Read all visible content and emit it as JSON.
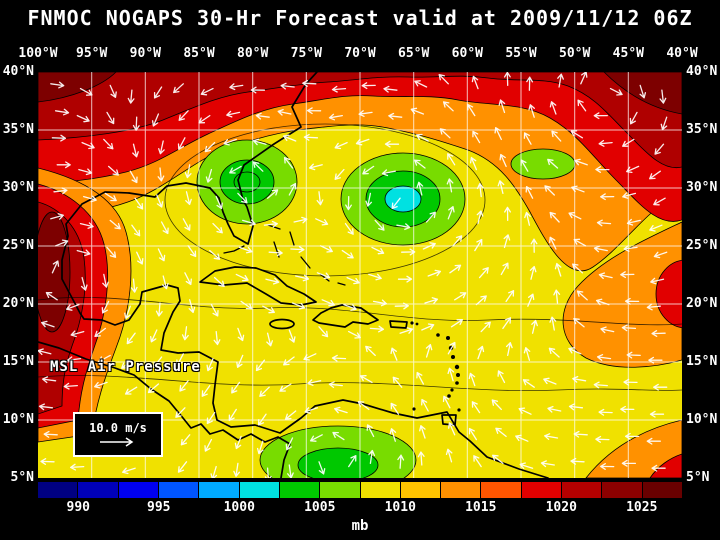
{
  "title": "FNMOC NOGAPS 30-Hr Forecast valid at 2009/11/12 06Z",
  "map": {
    "lon_labels": [
      "100°W",
      "95°W",
      "90°W",
      "85°W",
      "80°W",
      "75°W",
      "70°W",
      "65°W",
      "60°W",
      "55°W",
      "50°W",
      "45°W",
      "40°W"
    ],
    "lat_labels": [
      "40°N",
      "35°N",
      "30°N",
      "25°N",
      "20°N",
      "15°N",
      "10°N",
      "5°N"
    ],
    "overlay_label": "MSL Air Pressure",
    "wind_scale": {
      "label": "10.0 m/s"
    }
  },
  "colorbar": {
    "unit_label": "mb",
    "ticks": [
      "990",
      "995",
      "1000",
      "1005",
      "1010",
      "1015",
      "1020",
      "1025"
    ],
    "segment_colors": [
      "#000082",
      "#0000B9",
      "#0000F0",
      "#0055FF",
      "#00AAFF",
      "#00E1E1",
      "#00C800",
      "#78DC00",
      "#F0E100",
      "#FFC300",
      "#FF9100",
      "#FF5500",
      "#E10000",
      "#B40000",
      "#8C0000",
      "#690000"
    ]
  },
  "chart_data": {
    "type": "heatmap",
    "title": "FNMOC NOGAPS 30-Hr Forecast valid at 2009/11/12 06Z",
    "model": "NOGAPS",
    "center": "FNMOC",
    "forecast_hour": 30,
    "valid": "2009/11/12 06Z",
    "variable": "MSL Air Pressure",
    "unit": "mb",
    "lon_deg_w_range": [
      100,
      40
    ],
    "lat_deg_n_range": [
      40,
      5
    ],
    "contour_interval_mb": 2.5,
    "colorbar_ticks_mb": [
      990,
      995,
      1000,
      1005,
      1010,
      1015,
      1020,
      1025
    ],
    "wind_vector_scale_m_s": 10.0,
    "pressure_features": [
      {
        "kind": "low",
        "label": "closed low near northeast Florida coast",
        "lon_w": 80.5,
        "lat_n": 30.5,
        "approx_mb": 1003
      },
      {
        "kind": "low",
        "label": "tropical cyclone, west Atlantic (cyan core)",
        "lon_w": 66,
        "lat_n": 29,
        "approx_mb": 998
      },
      {
        "kind": "low",
        "label": "weak low southwest Caribbean / Colombia",
        "lon_w": 72.5,
        "lat_n": 7,
        "approx_mb": 1006
      },
      {
        "kind": "high",
        "label": "strong high northwest Atlantic",
        "lon_w": 47,
        "lat_n": 38,
        "approx_mb": 1026
      },
      {
        "kind": "high",
        "label": "high over eastern Mexico / west Gulf",
        "lon_w": 97,
        "lat_n": 22,
        "approx_mb": 1023
      }
    ]
  }
}
